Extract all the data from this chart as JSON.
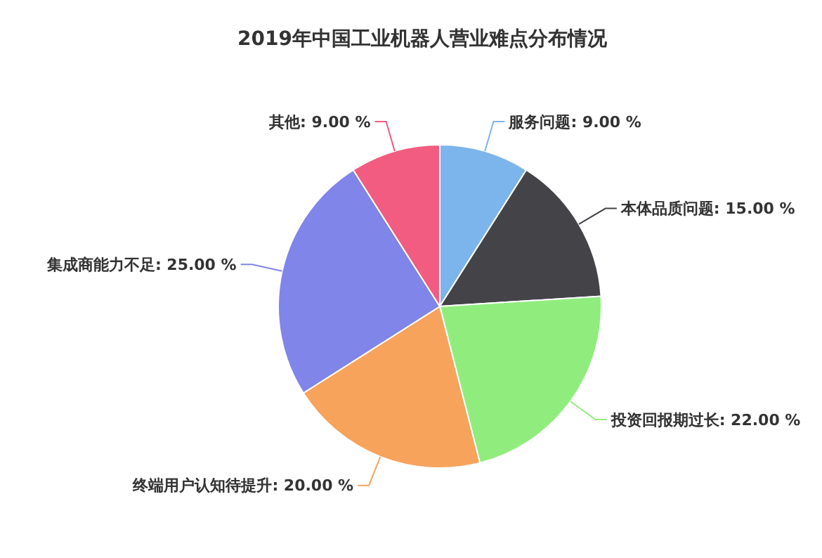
{
  "chart_data": {
    "type": "pie",
    "title": "2019年中国工业机器人营业难点分布情况",
    "categories": [
      "服务问题",
      "本体品质问题",
      "投资回报期过长",
      "终端用户认知待提升",
      "集成商能力不足",
      "其他"
    ],
    "values": [
      9,
      15,
      22,
      20,
      25,
      9
    ],
    "value_labels": [
      "9.00 %",
      "15.00 %",
      "22.00 %",
      "20.00 %",
      "25.00 %",
      "9.00 %"
    ],
    "colors": [
      "#7cb5ec",
      "#434348",
      "#90ed7d",
      "#f7a35c",
      "#8085e9",
      "#f15c80"
    ]
  }
}
